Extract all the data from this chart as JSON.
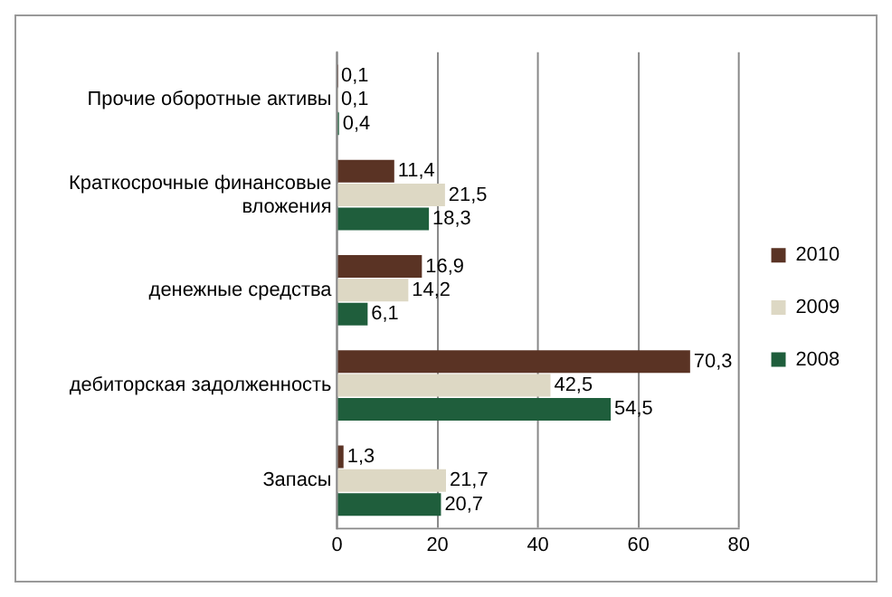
{
  "chart_data": {
    "type": "bar",
    "orientation": "horizontal",
    "categories": [
      "Прочие оборотные активы",
      "Краткосрочные финансовые вложения",
      "денежные средства",
      "дебиторская задолженность",
      "Запасы"
    ],
    "series": [
      {
        "name": "2010",
        "color": "#5a3324",
        "values": [
          0.1,
          11.4,
          16.9,
          70.3,
          1.3
        ],
        "value_labels": [
          "0,1",
          "11,4",
          "16,9",
          "70,3",
          "1,3"
        ]
      },
      {
        "name": "2009",
        "color": "#ddd8c4",
        "values": [
          0.1,
          21.5,
          14.2,
          42.5,
          21.7
        ],
        "value_labels": [
          "0,1",
          "21,5",
          "14,2",
          "42,5",
          "21,7"
        ]
      },
      {
        "name": "2008",
        "color": "#1f5e3c",
        "values": [
          0.4,
          18.3,
          6.1,
          54.5,
          20.7
        ],
        "value_labels": [
          "0,4",
          "18,3",
          "6,1",
          "54,5",
          "20,7"
        ]
      }
    ],
    "xlim": [
      0,
      80
    ],
    "xticks": [
      0,
      20,
      40,
      60,
      80
    ],
    "grid": "x",
    "legend": "right"
  }
}
